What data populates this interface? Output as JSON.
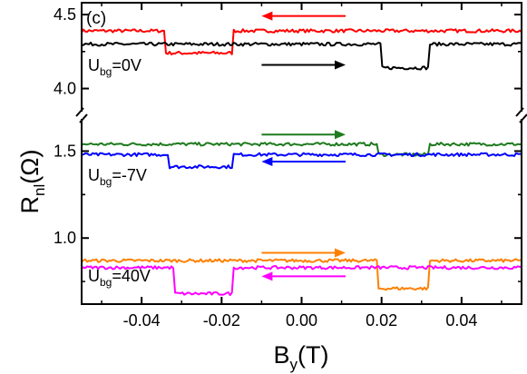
{
  "panel_label": "(c)",
  "axis_break_marks": "//",
  "chart_data": {
    "type": "line",
    "xlabel": {
      "main": "B",
      "sub": "y",
      "unit": "(T)"
    },
    "ylabel": {
      "main": "R",
      "sub": "nl",
      "unit": "(Ω)"
    },
    "xlim": [
      -0.055,
      0.055
    ],
    "x_ticks": [
      {
        "value": -0.04,
        "label": "-0.04"
      },
      {
        "value": -0.02,
        "label": "-0.02"
      },
      {
        "value": 0.0,
        "label": "0.00"
      },
      {
        "value": 0.02,
        "label": "0.02"
      },
      {
        "value": 0.04,
        "label": "0.04"
      }
    ],
    "y_segments": [
      {
        "name": "upper",
        "ylim": [
          3.85,
          4.58
        ],
        "ticks": [
          {
            "value": 4.5,
            "label": "4.5"
          },
          {
            "value": 4.0,
            "label": "4.0"
          }
        ]
      },
      {
        "name": "lower",
        "ylim": [
          0.62,
          1.68
        ],
        "ticks": [
          {
            "value": 1.5,
            "label": "1.5"
          },
          {
            "value": 1.0,
            "label": "1.0"
          }
        ]
      }
    ],
    "groups": [
      {
        "label": {
          "main": "U",
          "sub": "bg",
          "rest": "=0V"
        },
        "segment": "upper",
        "series": [
          {
            "direction": "down-sweep",
            "color": "#ff0000",
            "base": 4.39,
            "dip": 4.24,
            "switches": [
              {
                "from": -0.034,
                "to": -0.017,
                "value": 4.24
              }
            ]
          },
          {
            "direction": "up-sweep",
            "color": "#000000",
            "base": 4.3,
            "dip": 4.14,
            "switches": [
              {
                "from": 0.02,
                "to": 0.032,
                "value": 4.14
              }
            ]
          }
        ],
        "arrows": [
          {
            "direction": "left",
            "color": "#ff0000",
            "x_from": 0.011,
            "x_to": -0.01,
            "y": 4.49
          },
          {
            "direction": "right",
            "color": "#000000",
            "x_from": -0.01,
            "x_to": 0.011,
            "y": 4.16
          }
        ]
      },
      {
        "label": {
          "main": "U",
          "sub": "bg",
          "rest": "=-7V"
        },
        "segment": "lower",
        "series": [
          {
            "direction": "up-sweep",
            "color": "#1e7b1e",
            "base": 1.54,
            "dip": 1.48,
            "switches": [
              {
                "from": 0.019,
                "to": 0.032,
                "value": 1.48
              }
            ]
          },
          {
            "direction": "down-sweep",
            "color": "#0000ff",
            "base": 1.48,
            "dip": 1.41,
            "switches": [
              {
                "from": -0.033,
                "to": -0.017,
                "value": 1.41
              }
            ]
          }
        ],
        "arrows": [
          {
            "direction": "right",
            "color": "#1e7b1e",
            "x_from": -0.01,
            "x_to": 0.011,
            "y": 1.595
          },
          {
            "direction": "left",
            "color": "#0000ff",
            "x_from": 0.011,
            "x_to": -0.01,
            "y": 1.44
          }
        ]
      },
      {
        "label": {
          "main": "U",
          "sub": "bg",
          "rest": "=40V"
        },
        "segment": "lower",
        "series": [
          {
            "direction": "up-sweep",
            "color": "#ff8000",
            "base": 0.87,
            "dip": 0.71,
            "switches": [
              {
                "from": 0.019,
                "to": 0.032,
                "value": 0.71
              }
            ]
          },
          {
            "direction": "down-sweep",
            "color": "#ff00ff",
            "base": 0.83,
            "dip": 0.68,
            "switches": [
              {
                "from": -0.032,
                "to": -0.017,
                "value": 0.68
              }
            ]
          }
        ],
        "arrows": [
          {
            "direction": "right",
            "color": "#ff8000",
            "x_from": -0.01,
            "x_to": 0.011,
            "y": 0.915
          },
          {
            "direction": "left",
            "color": "#ff00ff",
            "x_from": 0.011,
            "x_to": -0.01,
            "y": 0.78
          }
        ]
      }
    ]
  }
}
